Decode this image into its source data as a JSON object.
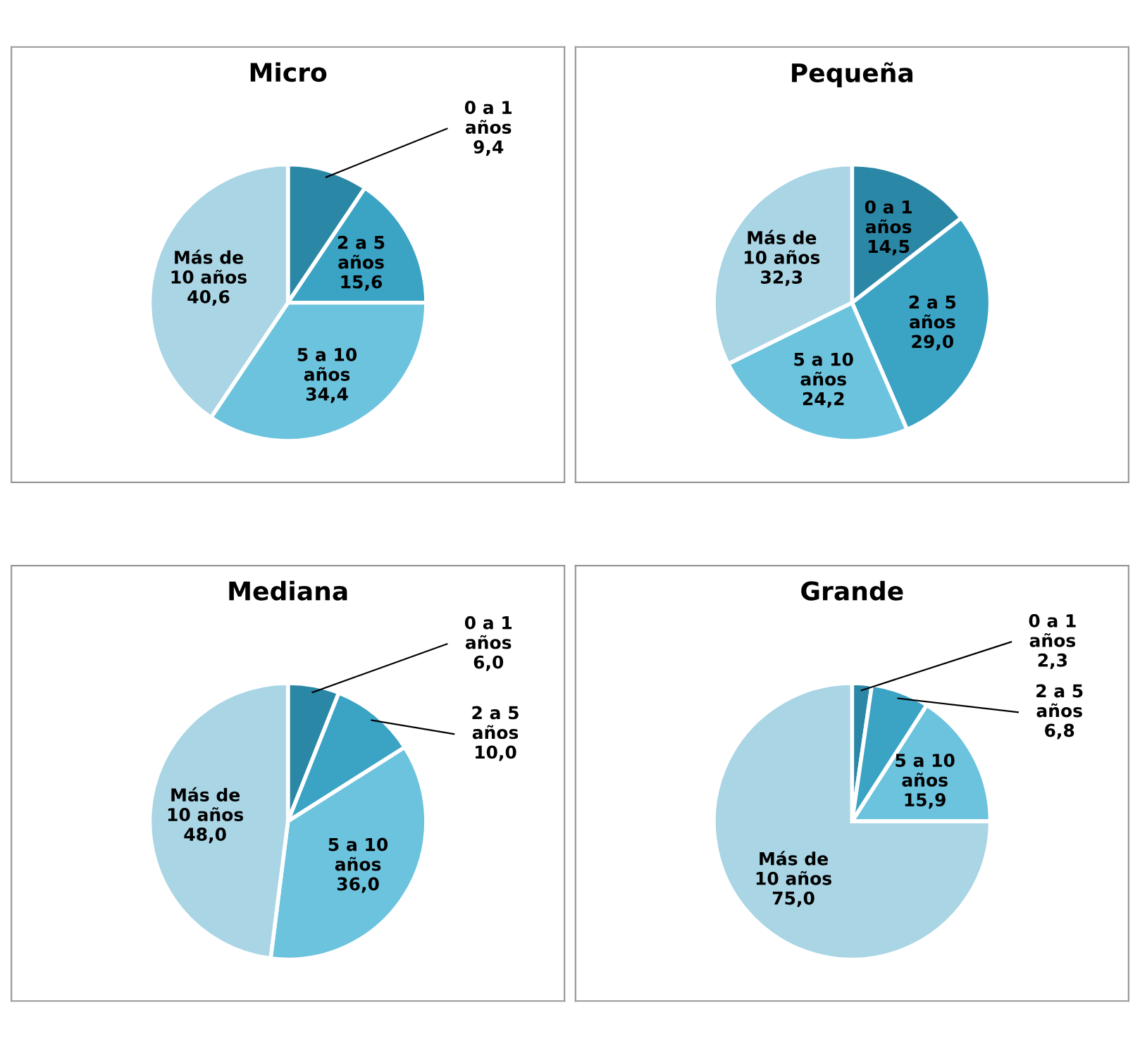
{
  "chart_data": [
    {
      "type": "pie",
      "title": "Micro",
      "categories": [
        "0 a 1 años",
        "2 a 5 años",
        "5 a 10 años",
        "Más de 10 años"
      ],
      "values": [
        9.4,
        15.6,
        34.4,
        40.6
      ],
      "value_labels": [
        "9,4",
        "15,6",
        "34,4",
        "40,6"
      ],
      "colors": [
        "#2b87a6",
        "#3ba3c4",
        "#6cc3de",
        "#a9d5e5"
      ],
      "legend": false
    },
    {
      "type": "pie",
      "title": "Pequeña",
      "categories": [
        "0 a 1 años",
        "2 a 5 años",
        "5 a 10 años",
        "Más de 10 años"
      ],
      "values": [
        14.5,
        29.0,
        24.2,
        32.3
      ],
      "value_labels": [
        "14,5",
        "29,0",
        "24,2",
        "32,3"
      ],
      "colors": [
        "#2b87a6",
        "#3ba3c4",
        "#6cc3de",
        "#a9d5e5"
      ],
      "legend": false
    },
    {
      "type": "pie",
      "title": "Mediana",
      "categories": [
        "0 a 1 años",
        "2 a 5 años",
        "5 a 10 años",
        "Más de 10 años"
      ],
      "values": [
        6.0,
        10.0,
        36.0,
        48.0
      ],
      "value_labels": [
        "6,0",
        "10,0",
        "36,0",
        "48,0"
      ],
      "colors": [
        "#2b87a6",
        "#3ba3c4",
        "#6cc3de",
        "#a9d5e5"
      ],
      "legend": false
    },
    {
      "type": "pie",
      "title": "Grande",
      "categories": [
        "0 a 1 años",
        "2 a 5 años",
        "5 a 10 años",
        "Más de 10 años"
      ],
      "values": [
        2.3,
        6.8,
        15.9,
        75.0
      ],
      "value_labels": [
        "2,3",
        "6,8",
        "15,9",
        "75,0"
      ],
      "colors": [
        "#2b87a6",
        "#3ba3c4",
        "#6cc3de",
        "#a9d5e5"
      ],
      "legend": false
    }
  ]
}
